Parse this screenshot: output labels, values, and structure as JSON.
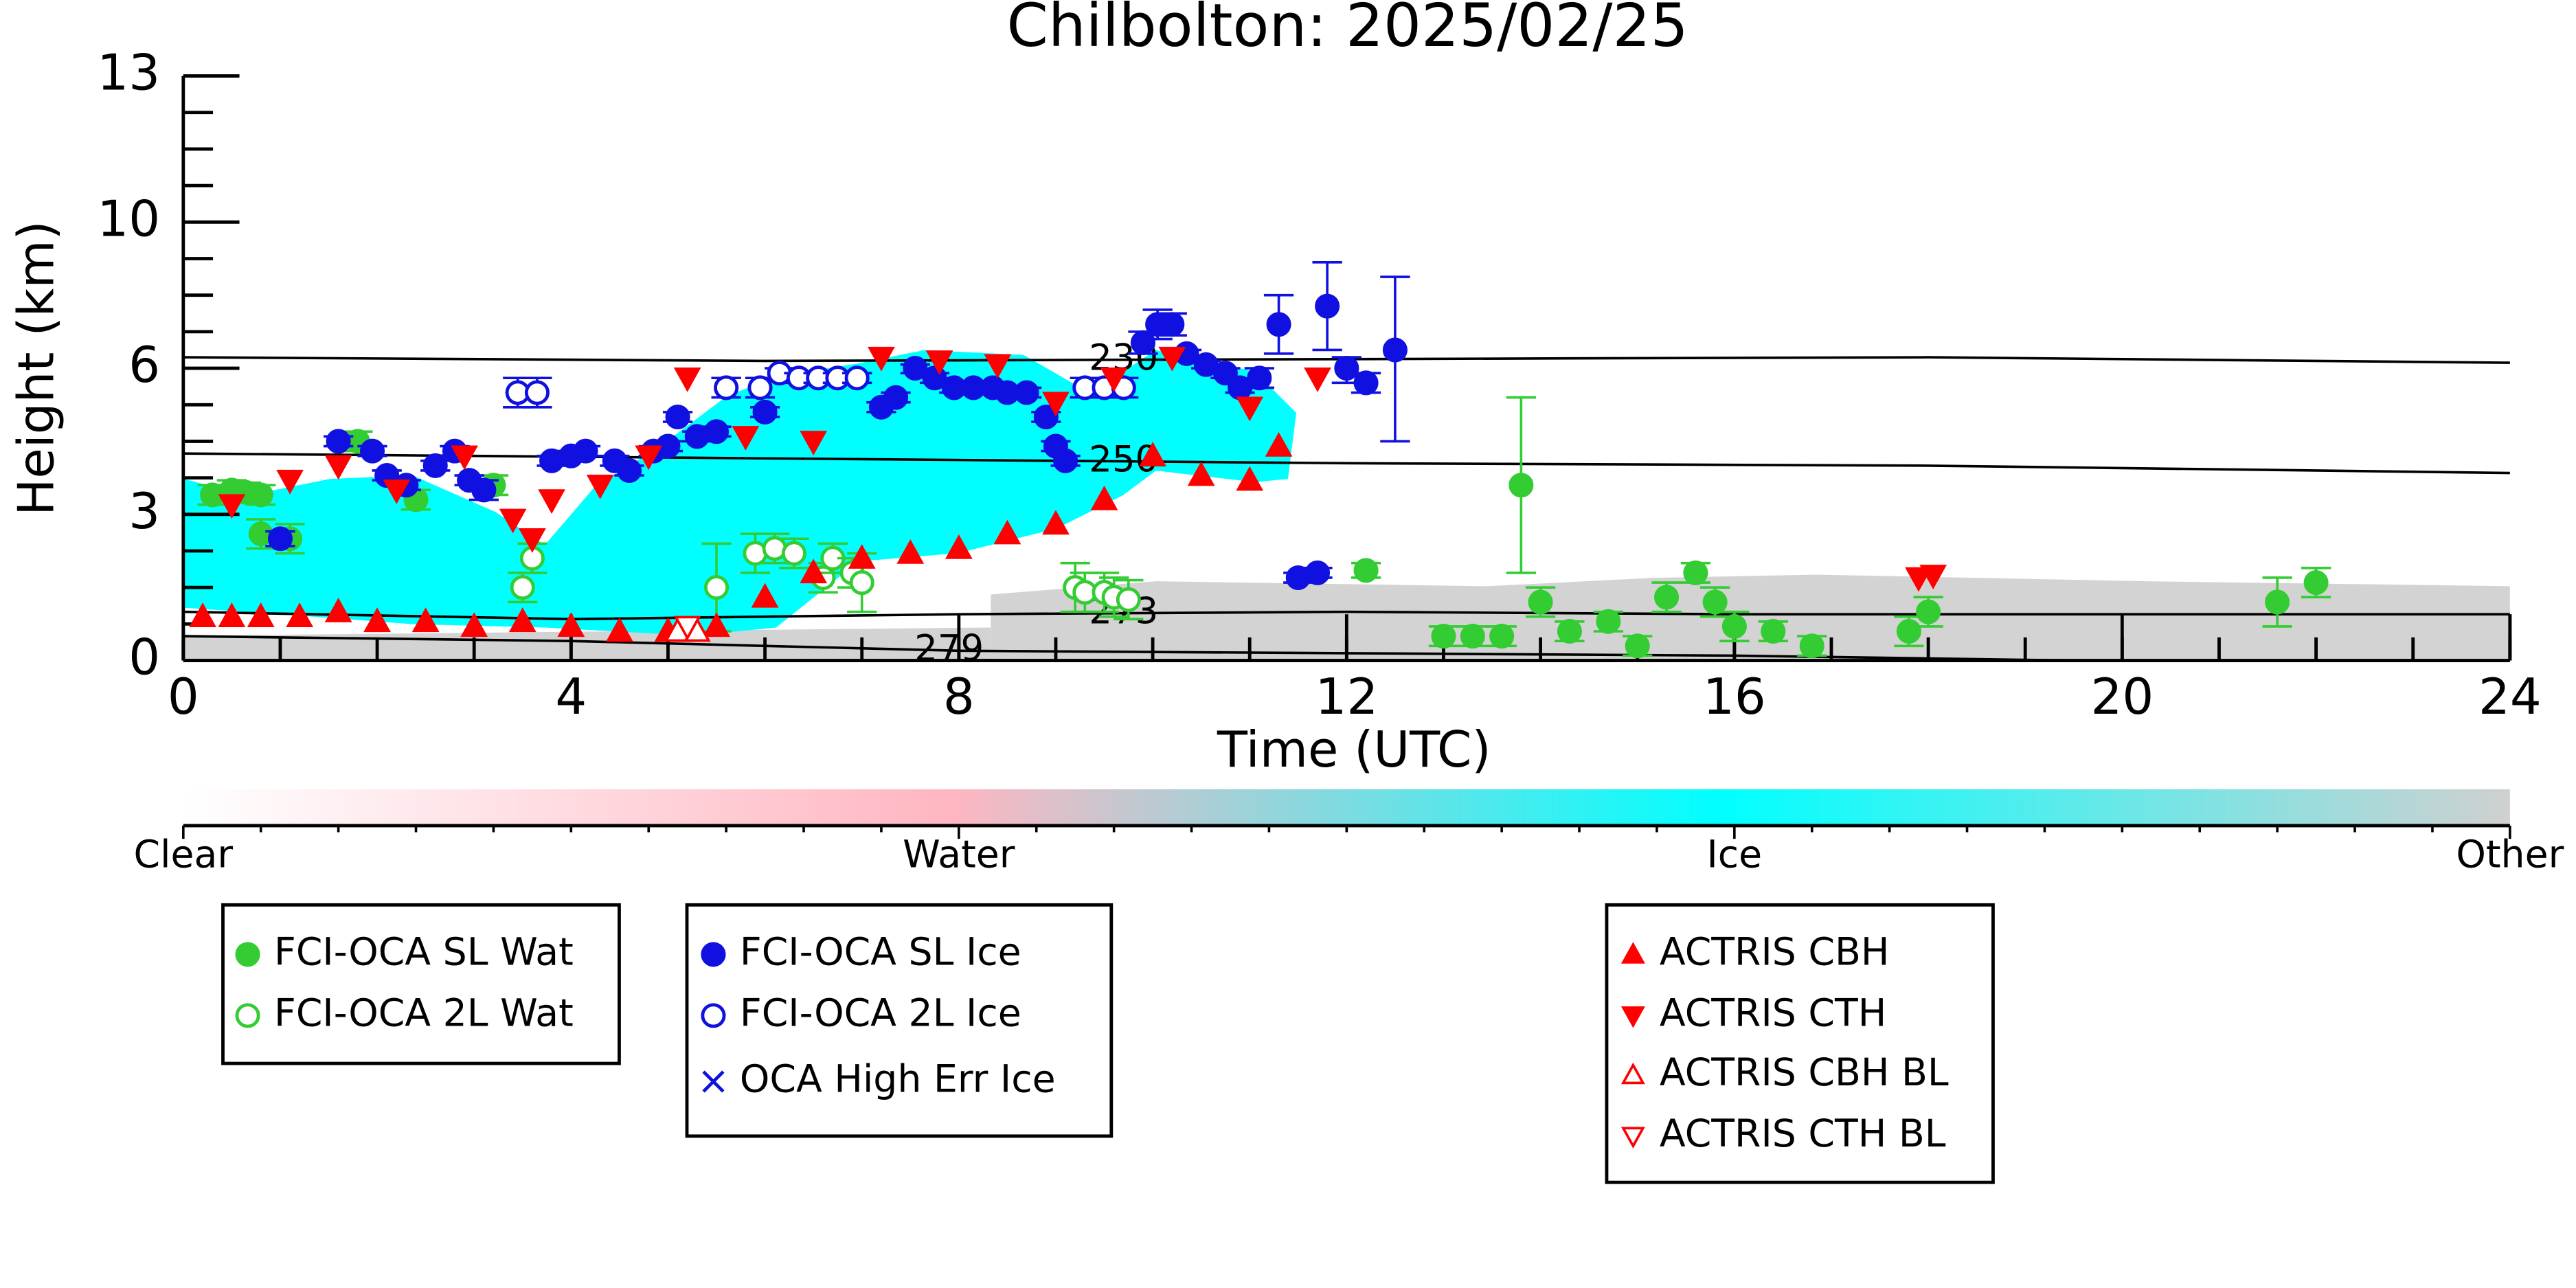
{
  "chart_data": {
    "type": "scatter",
    "title": "Chilbolton: 2025/02/25",
    "xlabel": "Time (UTC)",
    "ylabel": "Height (km)",
    "xlim": [
      0,
      24
    ],
    "xticks": [
      0,
      4,
      8,
      12,
      16,
      20,
      24
    ],
    "ylim": [
      0,
      13
    ],
    "yticks": [
      0,
      3,
      6,
      10,
      13
    ],
    "series": [
      {
        "name": "FCI-OCA SL Wat",
        "color": "#33cc33",
        "marker": "circle",
        "filled": true,
        "x": [
          0.3,
          0.5,
          0.65,
          0.8,
          0.8,
          1.1,
          1.8,
          2.4,
          3.2,
          12.2,
          13.8,
          14.0,
          13.0,
          13.3,
          13.6,
          14.3,
          14.7,
          15.0,
          15.3,
          15.6,
          15.8,
          16.0,
          16.4,
          16.8,
          17.8,
          18.0,
          21.6,
          22.0
        ],
        "values": [
          3.4,
          3.5,
          3.45,
          3.4,
          2.6,
          2.5,
          4.5,
          3.3,
          3.6,
          1.85,
          3.6,
          1.2,
          0.5,
          0.5,
          0.5,
          0.6,
          0.8,
          0.3,
          1.3,
          1.8,
          1.2,
          0.7,
          0.6,
          0.3,
          0.6,
          1.0,
          1.2,
          1.6
        ],
        "errors": [
          0.2,
          0.2,
          0.2,
          0.2,
          0.3,
          0.3,
          0.2,
          0.2,
          0.2,
          0.15,
          1.8,
          0.3,
          0.2,
          0.2,
          0.2,
          0.2,
          0.2,
          0.2,
          0.3,
          0.2,
          0.3,
          0.3,
          0.2,
          0.2,
          0.3,
          0.3,
          0.5,
          0.3
        ]
      },
      {
        "name": "FCI-OCA 2L Wat",
        "color": "#33cc33",
        "marker": "circle",
        "filled": false,
        "x": [
          3.5,
          3.6,
          5.5,
          5.9,
          6.1,
          6.3,
          6.6,
          6.7,
          6.9,
          7.0,
          9.2,
          9.3,
          9.5,
          9.6,
          9.75
        ],
        "values": [
          1.5,
          2.1,
          1.5,
          2.2,
          2.3,
          2.2,
          1.7,
          2.1,
          1.8,
          1.6,
          1.5,
          1.4,
          1.4,
          1.3,
          1.25
        ],
        "errors": [
          0.3,
          0.3,
          0.9,
          0.4,
          0.3,
          0.3,
          0.3,
          0.3,
          0.3,
          0.6,
          0.5,
          0.4,
          0.4,
          0.4,
          0.4
        ]
      },
      {
        "name": "FCI-OCA SL Ice",
        "color": "#1010e0",
        "marker": "circle",
        "filled": true,
        "x": [
          1.0,
          1.6,
          1.95,
          2.1,
          2.3,
          2.6,
          2.8,
          2.95,
          3.1,
          3.8,
          4.0,
          4.15,
          4.45,
          4.6,
          4.85,
          5.0,
          5.1,
          5.3,
          5.5,
          6.0,
          7.2,
          7.35,
          7.55,
          7.75,
          7.95,
          8.15,
          8.35,
          8.5,
          8.7,
          8.9,
          9.0,
          9.1,
          9.9,
          10.05,
          10.2,
          10.35,
          10.55,
          10.75,
          10.9,
          11.1,
          11.3,
          11.5,
          11.7,
          11.8,
          12.0,
          12.2,
          12.5
        ],
        "values": [
          2.5,
          4.5,
          4.3,
          3.8,
          3.6,
          4.0,
          4.3,
          3.7,
          3.5,
          4.1,
          4.2,
          4.3,
          4.1,
          3.9,
          4.3,
          4.4,
          5.0,
          4.6,
          4.7,
          5.1,
          5.2,
          5.4,
          6.0,
          5.8,
          5.6,
          5.6,
          5.6,
          5.5,
          5.5,
          5.0,
          4.4,
          4.1,
          6.7,
          7.2,
          7.2,
          6.4,
          6.1,
          5.9,
          5.6,
          5.8,
          7.2,
          1.7,
          1.8,
          7.7,
          6.0,
          5.7,
          6.5
        ],
        "errors": [
          0.15,
          0.1,
          0.1,
          0.1,
          0.1,
          0.1,
          0.1,
          0.1,
          0.2,
          0.1,
          0.1,
          0.1,
          0.1,
          0.1,
          0.1,
          0.1,
          0.1,
          0.1,
          0.1,
          0.1,
          0.1,
          0.1,
          0.1,
          0.1,
          0.1,
          0.1,
          0.1,
          0.1,
          0.1,
          0.1,
          0.1,
          0.1,
          0.3,
          0.4,
          0.3,
          0.1,
          0.1,
          0.1,
          0.1,
          0.2,
          0.8,
          0.1,
          0.1,
          1.2,
          0.3,
          0.2,
          2.0
        ]
      },
      {
        "name": "FCI-OCA 2L Ice",
        "color": "#1010e0",
        "marker": "circle",
        "filled": false,
        "x": [
          3.45,
          3.65,
          5.6,
          5.95,
          6.15,
          6.35,
          6.55,
          6.75,
          6.95,
          9.3,
          9.5,
          9.7
        ],
        "values": [
          5.5,
          5.5,
          5.6,
          5.6,
          5.9,
          5.8,
          5.8,
          5.8,
          5.8,
          5.6,
          5.6,
          5.6
        ],
        "errors": [
          0.3,
          0.3,
          0.2,
          0.2,
          0.1,
          0.1,
          0.1,
          0.1,
          0.1,
          0.2,
          0.2,
          0.2
        ]
      },
      {
        "name": "OCA High Err Ice",
        "color": "#1010e0",
        "marker": "x",
        "filled": false,
        "x": [],
        "values": []
      },
      {
        "name": "ACTRIS CBH",
        "color": "#ff0000",
        "marker": "up",
        "filled": true,
        "x": [
          0.2,
          0.5,
          0.8,
          1.2,
          1.6,
          2.0,
          2.5,
          3.0,
          3.5,
          4.0,
          4.5,
          5.0,
          5.5,
          6.0,
          6.5,
          7.0,
          7.5,
          8.0,
          8.5,
          9.0,
          9.5,
          10.0,
          10.5,
          11.0,
          11.3
        ],
        "values": [
          0.9,
          0.9,
          0.9,
          0.9,
          1.0,
          0.8,
          0.8,
          0.7,
          0.8,
          0.7,
          0.6,
          0.6,
          0.7,
          1.3,
          1.8,
          2.1,
          2.2,
          2.3,
          2.6,
          2.8,
          3.3,
          4.2,
          3.8,
          3.7,
          4.4
        ]
      },
      {
        "name": "ACTRIS CTH",
        "color": "#ff0000",
        "marker": "down",
        "filled": true,
        "x": [
          0.5,
          1.1,
          1.6,
          2.2,
          2.9,
          3.4,
          3.6,
          3.8,
          4.3,
          4.8,
          5.2,
          5.8,
          6.5,
          7.2,
          7.8,
          8.4,
          9.0,
          9.6,
          10.2,
          11.0,
          11.7,
          17.9,
          18.05
        ],
        "values": [
          3.2,
          3.7,
          4.0,
          3.5,
          4.2,
          2.9,
          2.5,
          3.3,
          3.6,
          4.2,
          5.8,
          4.6,
          4.5,
          6.3,
          6.2,
          6.1,
          5.3,
          5.8,
          6.3,
          5.2,
          5.8,
          1.7,
          1.75
        ]
      },
      {
        "name": "ACTRIS CBH BL",
        "color": "#ff0000",
        "marker": "up",
        "filled": false,
        "x": [
          5.1,
          5.3
        ],
        "values": [
          0.6,
          0.6
        ]
      },
      {
        "name": "ACTRIS CTH BL",
        "color": "#ff0000",
        "marker": "down",
        "filled": false,
        "x": [
          5.2
        ],
        "values": [
          0.7
        ]
      }
    ],
    "contours": [
      {
        "label": "230",
        "x": [
          0,
          6,
          12,
          18,
          24
        ],
        "values": [
          6.3,
          6.2,
          6.25,
          6.3,
          6.15
        ]
      },
      {
        "label": "250",
        "x": [
          0,
          6,
          12,
          18,
          24
        ],
        "values": [
          4.25,
          4.15,
          4.05,
          4.0,
          3.85
        ]
      },
      {
        "label": "273",
        "x": [
          0,
          4,
          8,
          12,
          16,
          20,
          24
        ],
        "values": [
          1.0,
          0.85,
          0.95,
          1.0,
          0.95,
          0.95,
          0.95
        ]
      },
      {
        "label": "279",
        "x": [
          0,
          4,
          8,
          12,
          16,
          19.5
        ],
        "values": [
          0.5,
          0.4,
          0.2,
          0.15,
          0.1,
          0
        ]
      }
    ],
    "colorbar": {
      "labels": [
        "Clear",
        "Water",
        "Ice",
        "Other"
      ]
    }
  }
}
